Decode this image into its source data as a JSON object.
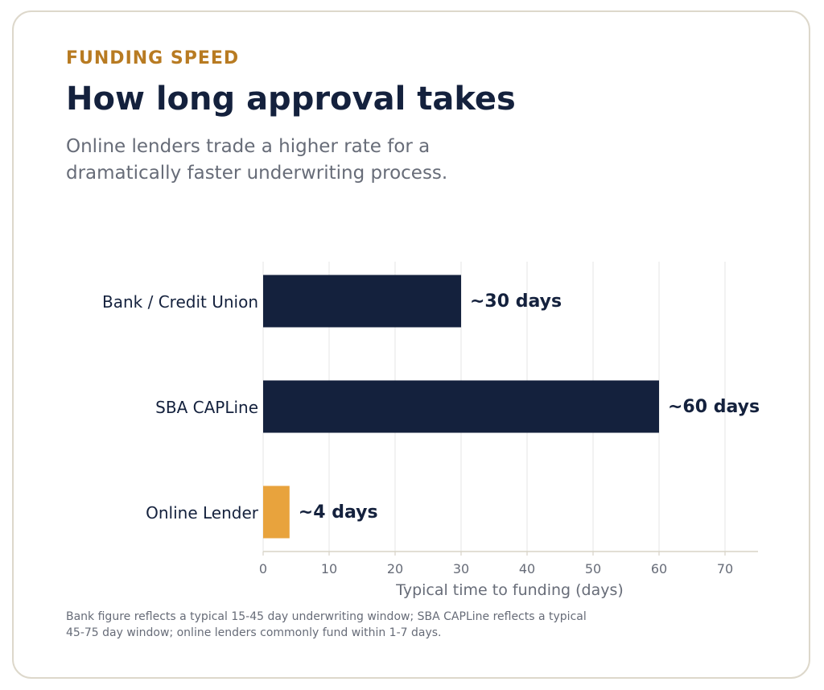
{
  "header": {
    "eyebrow": "FUNDING SPEED",
    "title": "How long approval takes",
    "subtitle": "Online lenders trade a higher rate for a dramatically faster underwriting process."
  },
  "footnote": " Bank figure reflects a typical 15-45 day underwriting window; SBA CAPLine reflects a typical\n45-75 day window; online lenders commonly fund within 1-7 days.",
  "colors": {
    "primary": "#14213d",
    "highlight": "#e8a33d",
    "eyebrow": "#b87b22",
    "grid": "#e6e6e6",
    "border": "#ddd8cb"
  },
  "chart_data": {
    "type": "bar",
    "orientation": "horizontal",
    "categories": [
      "Bank / Credit Union",
      "SBA CAPLine",
      "Online Lender"
    ],
    "values": [
      30,
      60,
      4
    ],
    "data_labels": [
      "~30 days",
      "~60 days",
      "~4 days"
    ],
    "bar_colors": [
      "#14213d",
      "#14213d",
      "#e8a33d"
    ],
    "xlabel": "Typical time to funding (days)",
    "xlim": [
      0,
      75
    ],
    "xticks": [
      0,
      10,
      20,
      30,
      40,
      50,
      60,
      70
    ],
    "grid": true
  }
}
